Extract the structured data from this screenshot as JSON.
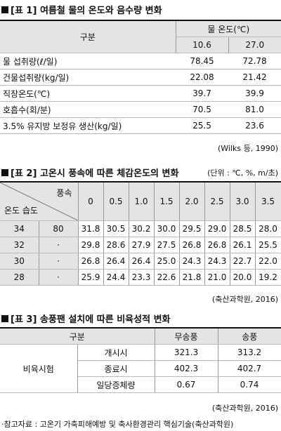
{
  "table1": {
    "title": "[표 1] 여름철 물의 온도와 음수량 변화",
    "header": {
      "group": "구분",
      "temp": "물 온도(℃)",
      "columns": [
        "10.6",
        "27.0"
      ]
    },
    "rows": [
      [
        "물 섭취량(ℓ/일)",
        "78.45",
        "72.78"
      ],
      [
        "건물섭취량(kg/일)",
        "22.08",
        "21.42"
      ],
      [
        "직장온도(℃)",
        "39.7",
        "39.9"
      ],
      [
        "호흡수(회/분)",
        "70.5",
        "81.0"
      ],
      [
        "3.5% 유지방 보정유 생산(kg/일)",
        "25.5",
        "23.6"
      ]
    ],
    "source": "(Wilks 등, 1990)"
  },
  "table2": {
    "title": "[표 2] 고온시 풍속에 따른 체감온도의 변화",
    "unit": "(단위 : ℃, %, m/초)",
    "header": {
      "wind": "풍속",
      "temp_humidity": "온도 습도",
      "columns": [
        "0",
        "0.5",
        "1.0",
        "1.5",
        "2.0",
        "2.5",
        "3.0",
        "3.5"
      ]
    },
    "rows": [
      [
        "34",
        "80",
        "31.8",
        "30.5",
        "30.2",
        "30.0",
        "29.5",
        "29.0",
        "28.5",
        "28.0"
      ],
      [
        "32",
        "·",
        "29.8",
        "28.6",
        "27.9",
        "27.5",
        "26.8",
        "26.8",
        "26.1",
        "25.5"
      ],
      [
        "30",
        "·",
        "26.8",
        "26.4",
        "26.4",
        "25.0",
        "24.3",
        "24.3",
        "22.7",
        "22.0"
      ],
      [
        "28",
        "·",
        "25.9",
        "24.4",
        "23.3",
        "22.6",
        "21.8",
        "21.0",
        "20.0",
        "19.2"
      ]
    ],
    "source": "(축산과학원, 2016)"
  },
  "table3": {
    "title": "[표 3] 송풍팬 설치에 따른 비육성적 변화",
    "header": [
      "구분",
      "무송풍",
      "송풍"
    ],
    "group": "비육시험",
    "rows": [
      [
        "개시시",
        "321.3",
        "313.2"
      ],
      [
        "종료시",
        "402.3",
        "402.7"
      ],
      [
        "일당증체량",
        "0.67",
        "0.74"
      ]
    ],
    "source": "(축산과학원, 2016)"
  },
  "footnote": "·참고자료 : 고온기 가축피해예방 및 축사환경관리 핵심기술(축산과학원)"
}
